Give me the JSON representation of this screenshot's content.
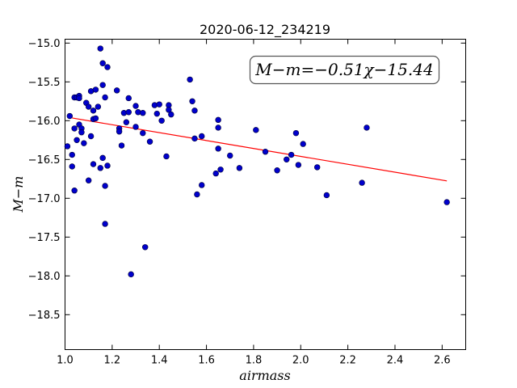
{
  "chart_data": {
    "type": "scatter",
    "title": "2020-06-12_234219",
    "xlabel": "airmass",
    "ylabel": "M−m",
    "annotation": "M−m=−0.51χ−15.44",
    "xlim": [
      1.0,
      2.7
    ],
    "ylim": [
      -18.95,
      -14.95
    ],
    "y_inverted": true,
    "xticks": [
      1.0,
      1.2,
      1.4,
      1.6,
      1.8,
      2.0,
      2.2,
      2.4,
      2.6
    ],
    "xtick_labels": [
      "1.0",
      "1.2",
      "1.4",
      "1.6",
      "1.8",
      "2.0",
      "2.2",
      "2.4",
      "2.6"
    ],
    "yticks": [
      -15.0,
      -15.5,
      -16.0,
      -16.5,
      -17.0,
      -17.5,
      -18.0,
      -18.5
    ],
    "ytick_labels": [
      "−15.0",
      "−15.5",
      "−16.0",
      "−16.5",
      "−17.0",
      "−17.5",
      "−18.0",
      "−18.5"
    ],
    "grid": false,
    "point_color": "#0000cc",
    "fit_color": "#ff0000",
    "fit": {
      "slope": -0.51,
      "intercept": -15.44,
      "x_range": [
        1.03,
        2.62
      ]
    },
    "points": [
      [
        1.01,
        -16.33
      ],
      [
        1.02,
        -15.94
      ],
      [
        1.03,
        -16.59
      ],
      [
        1.03,
        -16.44
      ],
      [
        1.04,
        -16.1
      ],
      [
        1.04,
        -15.7
      ],
      [
        1.04,
        -16.9
      ],
      [
        1.05,
        -15.7
      ],
      [
        1.06,
        -15.68
      ],
      [
        1.06,
        -15.71
      ],
      [
        1.05,
        -16.25
      ],
      [
        1.06,
        -16.05
      ],
      [
        1.07,
        -16.1
      ],
      [
        1.07,
        -16.15
      ],
      [
        1.08,
        -16.29
      ],
      [
        1.09,
        -15.77
      ],
      [
        1.1,
        -15.82
      ],
      [
        1.1,
        -16.77
      ],
      [
        1.11,
        -15.62
      ],
      [
        1.11,
        -16.2
      ],
      [
        1.12,
        -15.98
      ],
      [
        1.12,
        -16.56
      ],
      [
        1.12,
        -15.87
      ],
      [
        1.13,
        -15.6
      ],
      [
        1.13,
        -15.97
      ],
      [
        1.14,
        -15.82
      ],
      [
        1.15,
        -15.07
      ],
      [
        1.15,
        -16.61
      ],
      [
        1.16,
        -15.54
      ],
      [
        1.16,
        -15.26
      ],
      [
        1.17,
        -15.7
      ],
      [
        1.16,
        -16.48
      ],
      [
        1.17,
        -16.84
      ],
      [
        1.17,
        -17.33
      ],
      [
        1.18,
        -16.58
      ],
      [
        1.18,
        -15.31
      ],
      [
        1.22,
        -15.61
      ],
      [
        1.23,
        -16.1
      ],
      [
        1.23,
        -16.14
      ],
      [
        1.24,
        -16.32
      ],
      [
        1.25,
        -15.9
      ],
      [
        1.26,
        -16.02
      ],
      [
        1.27,
        -15.71
      ],
      [
        1.27,
        -15.89
      ],
      [
        1.28,
        -17.98
      ],
      [
        1.3,
        -16.08
      ],
      [
        1.3,
        -15.81
      ],
      [
        1.31,
        -15.89
      ],
      [
        1.33,
        -16.16
      ],
      [
        1.33,
        -15.9
      ],
      [
        1.34,
        -17.63
      ],
      [
        1.36,
        -16.27
      ],
      [
        1.38,
        -15.8
      ],
      [
        1.39,
        -15.91
      ],
      [
        1.4,
        -15.79
      ],
      [
        1.41,
        -16.0
      ],
      [
        1.43,
        -16.46
      ],
      [
        1.44,
        -15.8
      ],
      [
        1.44,
        -15.86
      ],
      [
        1.45,
        -15.92
      ],
      [
        1.53,
        -15.47
      ],
      [
        1.54,
        -15.75
      ],
      [
        1.55,
        -15.87
      ],
      [
        1.55,
        -16.23
      ],
      [
        1.56,
        -16.95
      ],
      [
        1.58,
        -16.83
      ],
      [
        1.58,
        -16.2
      ],
      [
        1.64,
        -16.68
      ],
      [
        1.65,
        -16.09
      ],
      [
        1.65,
        -16.36
      ],
      [
        1.65,
        -15.99
      ],
      [
        1.66,
        -16.63
      ],
      [
        1.7,
        -16.45
      ],
      [
        1.74,
        -16.61
      ],
      [
        1.81,
        -16.12
      ],
      [
        1.85,
        -16.4
      ],
      [
        1.9,
        -16.64
      ],
      [
        1.94,
        -16.5
      ],
      [
        1.96,
        -16.44
      ],
      [
        1.98,
        -16.16
      ],
      [
        1.99,
        -16.57
      ],
      [
        2.01,
        -16.3
      ],
      [
        2.07,
        -16.6
      ],
      [
        2.11,
        -16.96
      ],
      [
        2.26,
        -16.8
      ],
      [
        2.28,
        -16.09
      ],
      [
        2.62,
        -17.05
      ]
    ]
  }
}
